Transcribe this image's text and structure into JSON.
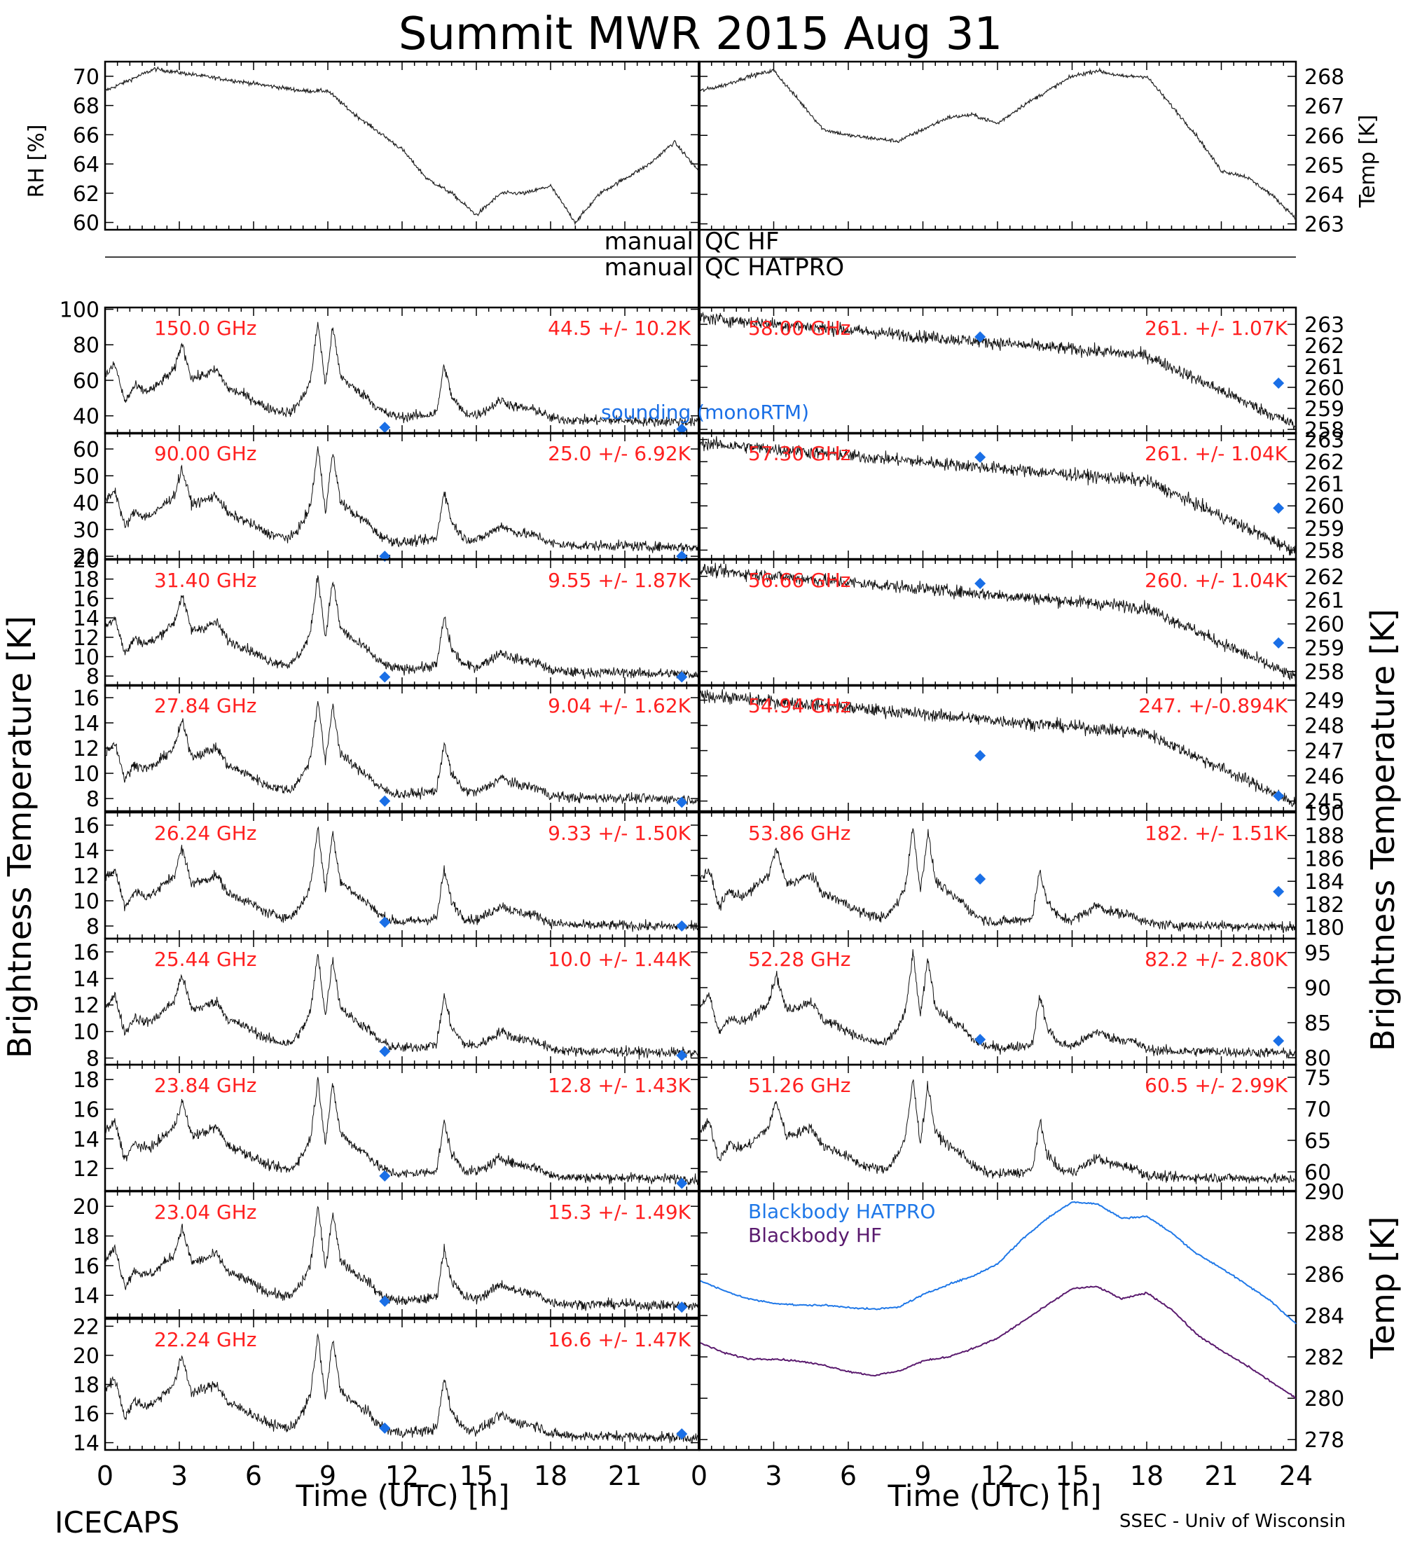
{
  "title": "Summit MWR 2015 Aug 31",
  "footer": {
    "left": "ICECAPS",
    "right": "SSEC - Univ of Wisconsin"
  },
  "qc": {
    "line1_left": "manual",
    "line1_right": "QC HF",
    "line2_left": "manual",
    "line2_right": "QC HATPRO"
  },
  "axes_text": {
    "xlabel": "Time (UTC) [h]",
    "left_ylabel": "Brightness Temperature [K]",
    "right_ylabel": "Brightness Temperature [K]",
    "bb_ylabel": "Temp [K]",
    "rh_ylabel": "RH [%]",
    "temp_ylabel": "Temp [K]",
    "sounding_label": "sounding (monoRTM)"
  },
  "colors": {
    "data": "#000000",
    "label": "#ff2020",
    "sounding": "#1a6fe6",
    "bb_hatpro": "#1f78e8",
    "bb_hf": "#5a1a6e",
    "background": "#ffffff"
  },
  "chart_data": [
    {
      "type": "line",
      "name": "RH [%]",
      "x": [
        0,
        2,
        4,
        6,
        8,
        9,
        10,
        12,
        13,
        14,
        15,
        16,
        17,
        18,
        19,
        20,
        21,
        22,
        23,
        24
      ],
      "y": [
        69,
        70.5,
        70,
        69.5,
        69,
        69,
        67.5,
        65,
        63,
        62,
        60.5,
        62,
        62,
        62.5,
        60,
        62,
        63,
        64,
        65.5,
        63.5
      ],
      "ylim": [
        59.5,
        71
      ],
      "yticks": [
        60,
        62,
        64,
        66,
        68,
        70
      ],
      "xlim": [
        0,
        24
      ]
    },
    {
      "type": "line",
      "name": "Temp [K]",
      "x": [
        0,
        1,
        2,
        3,
        4,
        5,
        6,
        8,
        10,
        11,
        12,
        13,
        14,
        15,
        16,
        17,
        18,
        19,
        20,
        21,
        22,
        23,
        24
      ],
      "y": [
        267.5,
        267.7,
        268,
        268.2,
        267.2,
        266.2,
        266,
        265.8,
        266.6,
        266.7,
        266.4,
        267,
        267.5,
        268,
        268.2,
        268,
        268,
        267,
        266,
        264.8,
        264.6,
        264,
        263.2
      ],
      "ylim": [
        262.8,
        268.5
      ],
      "yticks": [
        263,
        264,
        265,
        266,
        267,
        268
      ],
      "xlim": [
        0,
        24
      ]
    },
    {
      "type": "line",
      "freq": "150.0 GHz",
      "stat": "44.5 +/- 10.2K",
      "ylim": [
        30,
        101
      ],
      "yticks": [
        40,
        60,
        80,
        100
      ],
      "sounding": [
        [
          11.3,
          33.5
        ],
        [
          23.3,
          32.5
        ]
      ]
    },
    {
      "type": "line",
      "freq": "90.00 GHz",
      "stat": "25.0 +/- 6.92K",
      "ylim": [
        19,
        66
      ],
      "yticks": [
        20,
        30,
        40,
        50,
        60
      ],
      "sounding": [
        [
          11.3,
          20
        ],
        [
          23.3,
          20
        ]
      ]
    },
    {
      "type": "line",
      "freq": "31.40 GHz",
      "stat": "9.55 +/- 1.87K",
      "ylim": [
        7,
        20
      ],
      "yticks": [
        8,
        10,
        12,
        14,
        16,
        18,
        20
      ],
      "sounding": [
        [
          11.3,
          7.9
        ],
        [
          23.3,
          7.9
        ]
      ]
    },
    {
      "type": "line",
      "freq": "27.84 GHz",
      "stat": "9.04 +/- 1.62K",
      "ylim": [
        7,
        17
      ],
      "yticks": [
        8,
        10,
        12,
        14,
        16
      ],
      "sounding": [
        [
          11.3,
          7.8
        ],
        [
          23.3,
          7.7
        ]
      ]
    },
    {
      "type": "line",
      "freq": "26.24 GHz",
      "stat": "9.33 +/- 1.50K",
      "ylim": [
        7,
        17
      ],
      "yticks": [
        8,
        10,
        12,
        14,
        16
      ],
      "sounding": [
        [
          11.3,
          8.3
        ],
        [
          23.3,
          8
        ]
      ]
    },
    {
      "type": "line",
      "freq": "25.44 GHz",
      "stat": "10.0 +/- 1.44K",
      "ylim": [
        7.5,
        17
      ],
      "yticks": [
        8,
        10,
        12,
        14,
        16
      ],
      "sounding": [
        [
          11.3,
          8.5
        ],
        [
          23.3,
          8.2
        ]
      ]
    },
    {
      "type": "line",
      "freq": "23.84 GHz",
      "stat": "12.8 +/- 1.43K",
      "ylim": [
        10.5,
        19
      ],
      "yticks": [
        12,
        14,
        16,
        18
      ],
      "sounding": [
        [
          11.3,
          11.5
        ],
        [
          23.3,
          11
        ]
      ]
    },
    {
      "type": "line",
      "freq": "23.04 GHz",
      "stat": "15.3 +/- 1.49K",
      "ylim": [
        12.5,
        21
      ],
      "yticks": [
        14,
        16,
        18,
        20
      ],
      "sounding": [
        [
          11.3,
          13.6
        ],
        [
          23.3,
          13.2
        ]
      ]
    },
    {
      "type": "line",
      "freq": "22.24 GHz",
      "stat": "16.6 +/- 1.47K",
      "ylim": [
        13.5,
        22.5
      ],
      "yticks": [
        14,
        16,
        18,
        20,
        22
      ],
      "sounding": [
        [
          11.3,
          15
        ],
        [
          23.3,
          14.6
        ]
      ]
    },
    {
      "type": "line",
      "freq": "58.00 GHz",
      "stat": "261. +/- 1.07K",
      "ylim": [
        257.8,
        263.8
      ],
      "yticks": [
        258,
        259,
        260,
        261,
        262,
        263
      ],
      "sounding": [
        [
          11.3,
          262.4
        ],
        [
          23.3,
          260.2
        ]
      ]
    },
    {
      "type": "line",
      "freq": "57.30 GHz",
      "stat": "261. +/- 1.04K",
      "ylim": [
        257.6,
        263.3
      ],
      "yticks": [
        258,
        259,
        260,
        261,
        262,
        263
      ],
      "sounding": [
        [
          11.3,
          262.2
        ],
        [
          23.3,
          259.9
        ]
      ]
    },
    {
      "type": "line",
      "freq": "56.66 GHz",
      "stat": "260. +/- 1.04K",
      "ylim": [
        257.4,
        262.7
      ],
      "yticks": [
        258,
        259,
        260,
        261,
        262
      ],
      "sounding": [
        [
          11.3,
          261.7
        ],
        [
          23.3,
          259.2
        ]
      ]
    },
    {
      "type": "line",
      "freq": "54.94 GHz",
      "stat": "247. +/-0.894K",
      "ylim": [
        244.6,
        249.6
      ],
      "yticks": [
        245,
        246,
        247,
        248,
        249
      ],
      "sounding": [
        [
          11.3,
          246.8
        ],
        [
          23.3,
          245.2
        ]
      ]
    },
    {
      "type": "line",
      "freq": "53.86 GHz",
      "stat": "182. +/- 1.51K",
      "ylim": [
        179,
        190
      ],
      "yticks": [
        180,
        182,
        184,
        186,
        188,
        190
      ],
      "sounding": [
        [
          11.3,
          184.2
        ],
        [
          23.3,
          183.1
        ]
      ]
    },
    {
      "type": "line",
      "freq": "52.28 GHz",
      "stat": "82.2 +/- 2.80K",
      "ylim": [
        79,
        97
      ],
      "yticks": [
        80,
        85,
        90,
        95
      ],
      "sounding": [
        [
          11.3,
          82.6
        ],
        [
          23.3,
          82.4
        ]
      ]
    },
    {
      "type": "line",
      "freq": "51.26 GHz",
      "stat": "60.5 +/- 2.99K",
      "ylim": [
        57,
        77
      ],
      "yticks": [
        60,
        65,
        70,
        75
      ],
      "sounding": []
    },
    {
      "type": "line",
      "name": "Blackbody",
      "ylim": [
        277.5,
        290
      ],
      "yticks": [
        278,
        280,
        282,
        284,
        286,
        288,
        290
      ],
      "xlim": [
        0,
        24
      ],
      "series": [
        {
          "name": "Blackbody HATPRO",
          "x": [
            0,
            1,
            2,
            3,
            4,
            5,
            6,
            7,
            8,
            9,
            10,
            11,
            12,
            13,
            14,
            15,
            16,
            17,
            18,
            19,
            20,
            21,
            22,
            23,
            24
          ],
          "y": [
            285.7,
            285.2,
            284.8,
            284.6,
            284.5,
            284.5,
            284.4,
            284.3,
            284.4,
            285.0,
            285.5,
            285.9,
            286.5,
            287.7,
            288.7,
            289.5,
            289.4,
            288.7,
            288.8,
            288.0,
            287.0,
            286.3,
            285.5,
            284.7,
            283.6
          ]
        },
        {
          "name": "Blackbody HF",
          "x": [
            0,
            1,
            2,
            3,
            4,
            5,
            6,
            7,
            8,
            9,
            10,
            11,
            12,
            13,
            14,
            15,
            16,
            17,
            18,
            19,
            20,
            21,
            22,
            23,
            24
          ],
          "y": [
            282.7,
            282.2,
            281.9,
            281.9,
            281.8,
            281.6,
            281.3,
            281.1,
            281.3,
            281.8,
            282.0,
            282.4,
            282.9,
            283.7,
            284.5,
            285.3,
            285.4,
            284.8,
            285.1,
            284.3,
            283.1,
            282.3,
            281.6,
            280.8,
            280.0
          ]
        }
      ]
    }
  ],
  "xticks": [
    0,
    3,
    6,
    9,
    12,
    15,
    18,
    21,
    24
  ],
  "xtick_labels_left": [
    "0",
    "3",
    "6",
    "9",
    "12",
    "15",
    "18",
    "21"
  ],
  "xtick_labels_right": [
    "0",
    "3",
    "6",
    "9",
    "12",
    "15",
    "18",
    "21",
    "24"
  ]
}
